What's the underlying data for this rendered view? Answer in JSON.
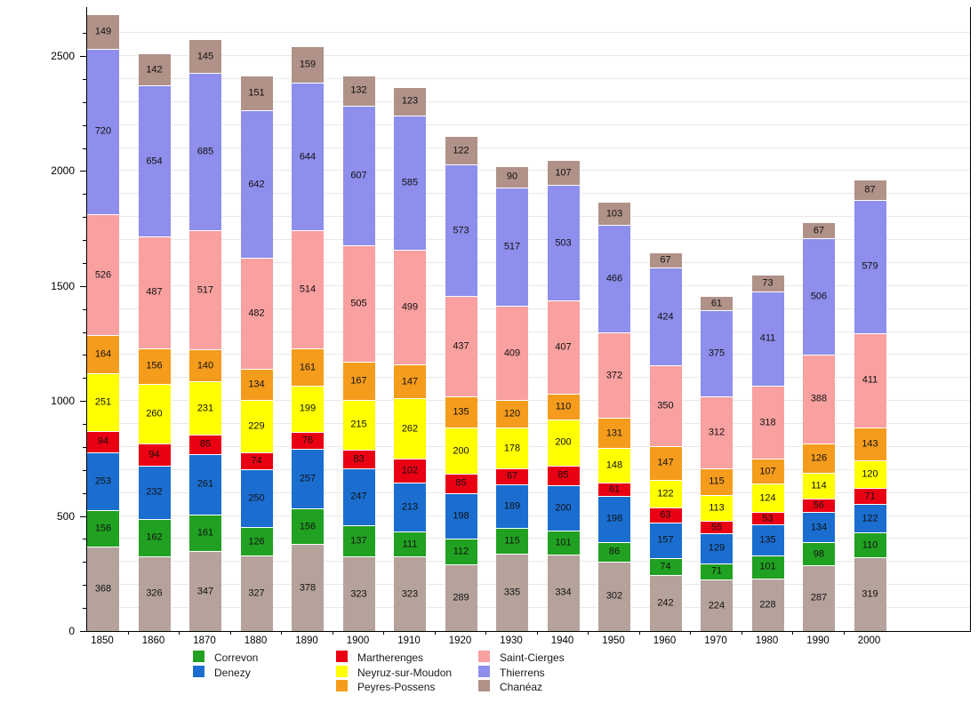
{
  "chart_data": {
    "type": "bar",
    "stacked": true,
    "title": "",
    "xlabel": "",
    "ylabel": "",
    "ylim": [
      0,
      2700
    ],
    "yticks": [
      0,
      500,
      1000,
      1500,
      2000,
      2500
    ],
    "minor_tick_step": 100,
    "grid": "horizontal, every 100, light gray",
    "legend_position": "bottom",
    "categories": [
      "1850",
      "1860",
      "1870",
      "1880",
      "1890",
      "1900",
      "1910",
      "1920",
      "1930",
      "1940",
      "1950",
      "1960",
      "1970",
      "1980",
      "1990",
      "2000"
    ],
    "series": [
      {
        "name": "(unlabeled)",
        "color": "#b5a29b",
        "values": [
          368,
          326,
          347,
          327,
          378,
          323,
          323,
          289,
          335,
          334,
          302,
          242,
          224,
          228,
          287,
          319
        ]
      },
      {
        "name": "Correvon",
        "color": "#21a121",
        "values": [
          156,
          162,
          161,
          126,
          156,
          137,
          111,
          112,
          115,
          101,
          86,
          74,
          71,
          101,
          98,
          110
        ]
      },
      {
        "name": "Denezy",
        "color": "#1b6ed0",
        "values": [
          253,
          232,
          261,
          250,
          257,
          247,
          213,
          198,
          189,
          200,
          198,
          157,
          129,
          135,
          134,
          122
        ]
      },
      {
        "name": "Martherenges",
        "color": "#ea0013",
        "values": [
          94,
          94,
          85,
          74,
          76,
          83,
          102,
          85,
          67,
          85,
          61,
          63,
          55,
          53,
          56,
          71
        ]
      },
      {
        "name": "Neyruz-sur-Moudon",
        "color": "#ffff00",
        "values": [
          251,
          260,
          231,
          229,
          199,
          215,
          262,
          200,
          178,
          200,
          148,
          122,
          113,
          124,
          114,
          120
        ]
      },
      {
        "name": "Peyres-Possens",
        "color": "#f59c1c",
        "values": [
          164,
          156,
          140,
          134,
          161,
          167,
          147,
          135,
          120,
          110,
          131,
          147,
          115,
          107,
          126,
          143
        ]
      },
      {
        "name": "Saint-Cierges",
        "color": "#f9a0a0",
        "values": [
          526,
          487,
          517,
          482,
          514,
          505,
          499,
          437,
          409,
          407,
          372,
          350,
          312,
          318,
          388,
          411
        ]
      },
      {
        "name": "Thierrens",
        "color": "#8e8eec",
        "values": [
          720,
          654,
          685,
          642,
          644,
          607,
          585,
          573,
          517,
          503,
          466,
          424,
          375,
          411,
          506,
          579
        ]
      },
      {
        "name": "Chanéaz",
        "color": "#b09288",
        "values": [
          149,
          142,
          145,
          151,
          159,
          132,
          123,
          122,
          90,
          107,
          103,
          67,
          61,
          73,
          67,
          87
        ]
      }
    ],
    "legend_columns": [
      [
        "Correvon",
        "Denezy"
      ],
      [
        "Martherenges",
        "Neyruz-sur-Moudon",
        "Peyres-Possens"
      ],
      [
        "Saint-Cierges",
        "Thierrens",
        "Chanéaz"
      ]
    ]
  }
}
